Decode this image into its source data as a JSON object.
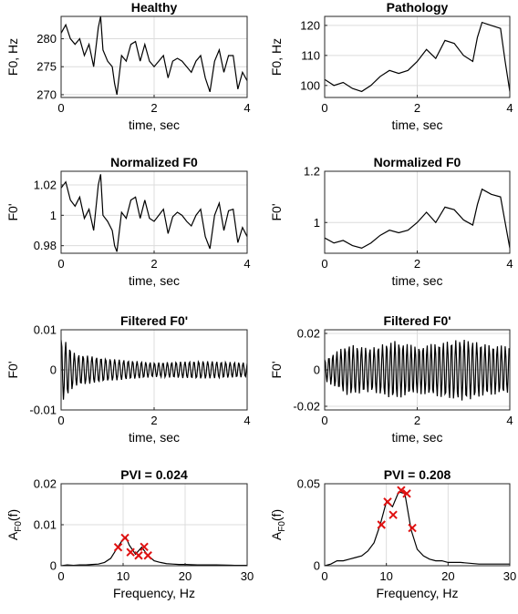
{
  "chart_data": [
    {
      "type": "line",
      "panel": "healthy-f0",
      "title": "Healthy",
      "xlabel": "time, sec",
      "ylabel": "F0, Hz",
      "xlim": [
        0,
        4
      ],
      "ylim": [
        269.5,
        284
      ],
      "xticks": [
        0,
        2,
        4
      ],
      "yticks": [
        270,
        275,
        280
      ],
      "grid": true,
      "x": [
        0,
        0.1,
        0.2,
        0.3,
        0.4,
        0.5,
        0.6,
        0.7,
        0.8,
        0.85,
        0.9,
        1.0,
        1.1,
        1.15,
        1.2,
        1.3,
        1.4,
        1.5,
        1.6,
        1.7,
        1.8,
        1.9,
        2.0,
        2.1,
        2.2,
        2.3,
        2.4,
        2.5,
        2.6,
        2.7,
        2.8,
        2.9,
        3.0,
        3.1,
        3.2,
        3.3,
        3.4,
        3.5,
        3.6,
        3.7,
        3.8,
        3.9,
        4.0
      ],
      "y": [
        281,
        282.5,
        280,
        279,
        280,
        277,
        279,
        275,
        282,
        284,
        278,
        276,
        275,
        272,
        270,
        277,
        276,
        279,
        279.5,
        276,
        279,
        276,
        275,
        276,
        277,
        273,
        276,
        276.5,
        276,
        275,
        274,
        276,
        277,
        273,
        270.5,
        276,
        278,
        274,
        277,
        277,
        271,
        274,
        272.5
      ]
    },
    {
      "type": "line",
      "panel": "pathology-f0",
      "title": "Pathology",
      "xlabel": "time, sec",
      "ylabel": "F0, Hz",
      "xlim": [
        0,
        4
      ],
      "ylim": [
        96,
        123
      ],
      "xticks": [
        0,
        2,
        4
      ],
      "yticks": [
        100,
        110,
        120
      ],
      "grid": true,
      "x": [
        0,
        0.2,
        0.4,
        0.6,
        0.8,
        1.0,
        1.2,
        1.4,
        1.6,
        1.8,
        2.0,
        2.2,
        2.4,
        2.6,
        2.8,
        3.0,
        3.2,
        3.3,
        3.4,
        3.6,
        3.8,
        3.9,
        4.0
      ],
      "y": [
        102,
        100,
        101,
        99,
        98,
        100,
        103,
        105,
        104,
        105,
        108,
        112,
        109,
        115,
        114,
        110,
        108,
        116,
        121,
        120,
        119,
        108,
        98
      ]
    },
    {
      "type": "line",
      "panel": "healthy-normalized",
      "title": "Normalized F0",
      "xlabel": "time, sec",
      "ylabel": "F0'",
      "xlim": [
        0,
        4
      ],
      "ylim": [
        0.975,
        1.029
      ],
      "xticks": [
        0,
        2,
        4
      ],
      "yticks": [
        0.98,
        1,
        1.02
      ],
      "yticklabels": [
        "0.98",
        "1",
        "1.02"
      ],
      "grid": true,
      "x": [
        0,
        0.1,
        0.2,
        0.3,
        0.4,
        0.5,
        0.6,
        0.7,
        0.8,
        0.85,
        0.9,
        1.0,
        1.1,
        1.15,
        1.2,
        1.3,
        1.4,
        1.5,
        1.6,
        1.7,
        1.8,
        1.9,
        2.0,
        2.1,
        2.2,
        2.3,
        2.4,
        2.5,
        2.6,
        2.7,
        2.8,
        2.9,
        3.0,
        3.1,
        3.2,
        3.3,
        3.4,
        3.5,
        3.6,
        3.7,
        3.8,
        3.9,
        4.0
      ],
      "y": [
        1.018,
        1.022,
        1.01,
        1.006,
        1.012,
        0.998,
        1.004,
        0.99,
        1.02,
        1.027,
        1.0,
        0.996,
        0.99,
        0.98,
        0.976,
        1.002,
        0.998,
        1.01,
        1.012,
        0.998,
        1.01,
        0.998,
        0.996,
        1.0,
        1.004,
        0.988,
        0.999,
        1.002,
        1.0,
        0.996,
        0.993,
        1.0,
        1.004,
        0.986,
        0.978,
        1.0,
        1.008,
        0.99,
        1.003,
        1.004,
        0.982,
        0.992,
        0.986
      ]
    },
    {
      "type": "line",
      "panel": "pathology-normalized",
      "title": "Normalized F0",
      "xlabel": "time, sec",
      "ylabel": "F0'",
      "xlim": [
        0,
        4
      ],
      "ylim": [
        0.88,
        1.2
      ],
      "xticks": [
        0,
        2,
        4
      ],
      "yticks": [
        1,
        1.2
      ],
      "yticklabels": [
        "1",
        "1.2"
      ],
      "grid": true,
      "x": [
        0,
        0.2,
        0.4,
        0.6,
        0.8,
        1.0,
        1.2,
        1.4,
        1.6,
        1.8,
        2.0,
        2.2,
        2.4,
        2.6,
        2.8,
        3.0,
        3.2,
        3.3,
        3.4,
        3.6,
        3.8,
        3.9,
        4.0
      ],
      "y": [
        0.94,
        0.92,
        0.93,
        0.91,
        0.9,
        0.92,
        0.95,
        0.97,
        0.96,
        0.97,
        1.0,
        1.04,
        1.0,
        1.06,
        1.05,
        1.01,
        0.99,
        1.07,
        1.13,
        1.11,
        1.1,
        1.0,
        0.9
      ]
    },
    {
      "type": "line",
      "panel": "healthy-filtered",
      "title": "Filtered F0'",
      "xlabel": "time, sec",
      "ylabel": "F0'",
      "xlim": [
        0,
        4
      ],
      "ylim": [
        -0.01,
        0.01
      ],
      "xticks": [
        0,
        2,
        4
      ],
      "yticks": [
        -0.01,
        0,
        0.01
      ],
      "yticklabels": [
        "-0.01",
        "0",
        "0.01"
      ],
      "grid": true,
      "sample_rate_hz": 60,
      "oscillation_hz": 10.5,
      "envelope": {
        "t": [
          0,
          0.1,
          0.3,
          1.0,
          2.0,
          3.0,
          4.0
        ],
        "amp": [
          0.008,
          0.007,
          0.004,
          0.0028,
          0.0018,
          0.0022,
          0.0018
        ]
      }
    },
    {
      "type": "line",
      "panel": "pathology-filtered",
      "title": "Filtered F0'",
      "xlabel": "time, sec",
      "ylabel": "F0'",
      "xlim": [
        0,
        4
      ],
      "ylim": [
        -0.022,
        0.022
      ],
      "xticks": [
        0,
        2,
        4
      ],
      "yticks": [
        -0.02,
        0,
        0.02
      ],
      "yticklabels": [
        "-0.02",
        "0",
        "0.02"
      ],
      "grid": true,
      "sample_rate_hz": 60,
      "oscillation_hz": 11.3,
      "envelope": {
        "t": [
          0,
          0.5,
          1.0,
          1.5,
          2.0,
          2.5,
          3.0,
          3.5,
          4.0
        ],
        "amp": [
          0.006,
          0.014,
          0.012,
          0.016,
          0.013,
          0.015,
          0.017,
          0.014,
          0.013
        ]
      }
    },
    {
      "type": "line",
      "panel": "healthy-spectrum",
      "title": "PVI = 0.024",
      "xlabel": "Frequency, Hz",
      "ylabel": "A",
      "ylabel_sub": "F0",
      "ylabel_suffix": "(f)",
      "xlim": [
        0,
        30
      ],
      "ylim": [
        0,
        0.02
      ],
      "xticks": [
        0,
        10,
        20,
        30
      ],
      "yticks": [
        0,
        0.01,
        0.02
      ],
      "yticklabels": [
        "0",
        "0.01",
        "0.02"
      ],
      "grid": true,
      "x": [
        0,
        1,
        2,
        3,
        4,
        5,
        6,
        7,
        8,
        9,
        10,
        10.5,
        11,
        12,
        13,
        14,
        15,
        16,
        17,
        18,
        19,
        20,
        22,
        25,
        28,
        30
      ],
      "y": [
        0,
        0.0002,
        0.0001,
        0.0002,
        0.0002,
        0.0003,
        0.0004,
        0.0008,
        0.0018,
        0.0042,
        0.0065,
        0.0068,
        0.005,
        0.0028,
        0.0045,
        0.0025,
        0.0012,
        0.0008,
        0.0005,
        0.0004,
        0.0003,
        0.0003,
        0.0002,
        0.0002,
        0.0001,
        0.0001
      ],
      "markers": {
        "x": [
          9.2,
          10.3,
          11.2,
          12.5,
          13.4,
          14.0
        ],
        "y": [
          0.0045,
          0.0068,
          0.0033,
          0.0025,
          0.0046,
          0.0025
        ],
        "symbol": "x",
        "color": "#e01010"
      }
    },
    {
      "type": "line",
      "panel": "pathology-spectrum",
      "title": "PVI = 0.208",
      "xlabel": "Frequency, Hz",
      "ylabel": "A",
      "ylabel_sub": "F0",
      "ylabel_suffix": "(f)",
      "xlim": [
        0,
        30
      ],
      "ylim": [
        0,
        0.05
      ],
      "xticks": [
        0,
        10,
        20,
        30
      ],
      "yticks": [
        0,
        0.05
      ],
      "yticklabels": [
        "0",
        "0.05"
      ],
      "grid": true,
      "x": [
        0,
        1,
        2,
        3,
        4,
        5,
        6,
        7,
        8,
        9,
        10,
        11,
        12,
        13,
        14,
        15,
        16,
        17,
        18,
        19,
        20,
        22,
        25,
        28,
        30
      ],
      "y": [
        0,
        0.001,
        0.003,
        0.003,
        0.004,
        0.005,
        0.006,
        0.009,
        0.014,
        0.025,
        0.039,
        0.036,
        0.045,
        0.044,
        0.022,
        0.01,
        0.006,
        0.004,
        0.003,
        0.003,
        0.002,
        0.002,
        0.001,
        0.001,
        0.001
      ],
      "markers": {
        "x": [
          9.2,
          10.2,
          11.1,
          12.4,
          13.3,
          14.2
        ],
        "y": [
          0.025,
          0.039,
          0.031,
          0.046,
          0.044,
          0.023
        ],
        "symbol": "x",
        "color": "#e01010"
      }
    }
  ]
}
